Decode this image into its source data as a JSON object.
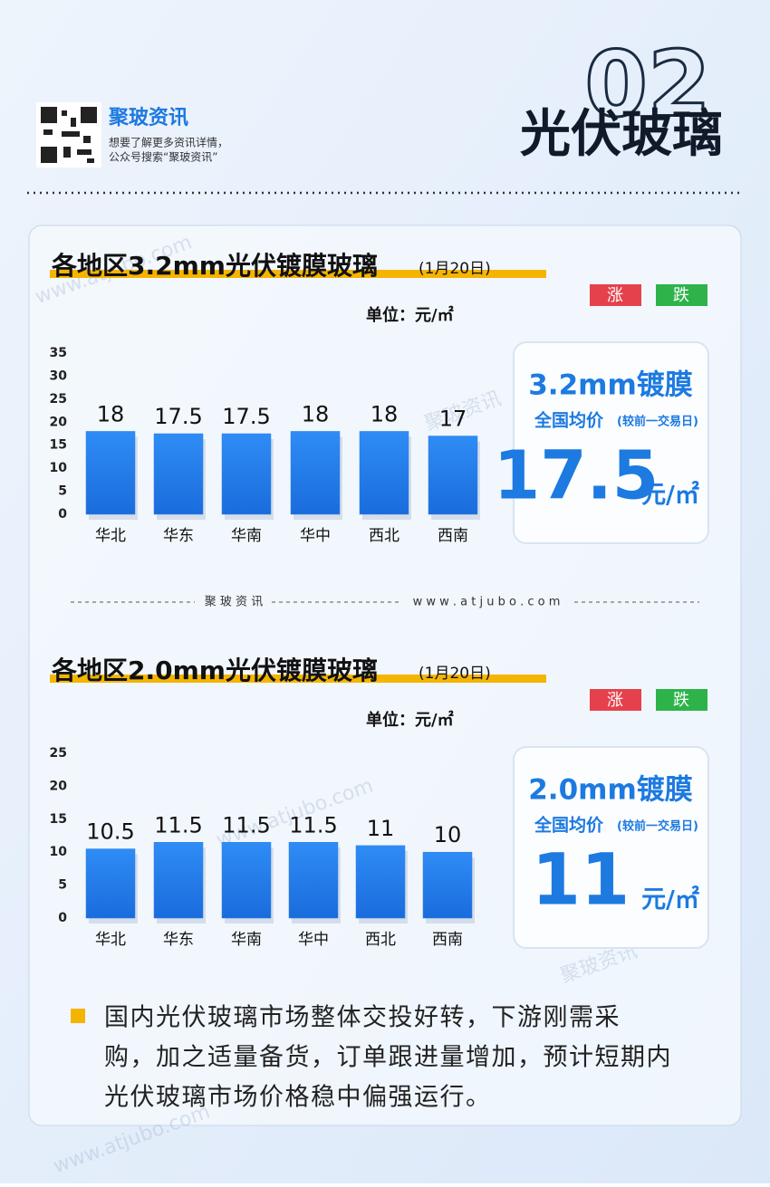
{
  "header": {
    "brand": "聚玻资讯",
    "tagline": [
      "想要了解更多资讯详情，",
      "公众号搜索“聚玻资讯”"
    ],
    "number": "02",
    "section": "光伏玻璃"
  },
  "watermarks": [
    "www.atjubo.com",
    "聚玻资讯"
  ],
  "chart_data": [
    {
      "type": "bar",
      "title": "各地区3.2mm光伏镀膜玻璃",
      "date": "(1月20日)",
      "unit": "单位：元/㎡",
      "legend": [
        {
          "label": "涨",
          "color": "#e5414c"
        },
        {
          "label": "跌",
          "color": "#2db34a"
        }
      ],
      "categories": [
        "华北",
        "华东",
        "华南",
        "华中",
        "西北",
        "西南"
      ],
      "values": [
        18,
        17.5,
        17.5,
        18,
        18,
        17
      ],
      "color": "#2a80ea",
      "ylim": [
        0,
        35
      ],
      "yticks": [
        0,
        5,
        10,
        15,
        20,
        25,
        30,
        35
      ],
      "summary": {
        "title": "3.2mm镀膜",
        "label": "全国均价",
        "note": "(较前一交易日)",
        "value": 17.5,
        "unit": "元/㎡"
      }
    },
    {
      "type": "bar",
      "title": "各地区2.0mm光伏镀膜玻璃",
      "date": "(1月20日)",
      "unit": "单位：元/㎡",
      "legend": [
        {
          "label": "涨",
          "color": "#e5414c"
        },
        {
          "label": "跌",
          "color": "#2db34a"
        }
      ],
      "categories": [
        "华北",
        "华东",
        "华南",
        "华中",
        "西北",
        "西南"
      ],
      "values": [
        10.5,
        11.5,
        11.5,
        11.5,
        11,
        10
      ],
      "color": "#2a80ea",
      "ylim": [
        0,
        25
      ],
      "yticks": [
        0,
        5,
        10,
        15,
        20,
        25
      ],
      "summary": {
        "title": "2.0mm镀膜",
        "label": "全国均价",
        "note": "(较前一交易日)",
        "value": 11,
        "unit": "元/㎡"
      }
    }
  ],
  "divider": [
    "聚 玻 资 讯",
    "w w w . a t j u b o . c o m"
  ],
  "note": [
    "国内光伏玻璃市场整体交投好转，下游刚需采",
    "购，加之适量备货，订单跟进量增加，预计短期内",
    "光伏玻璃市场价格稳中偏强运行。"
  ]
}
